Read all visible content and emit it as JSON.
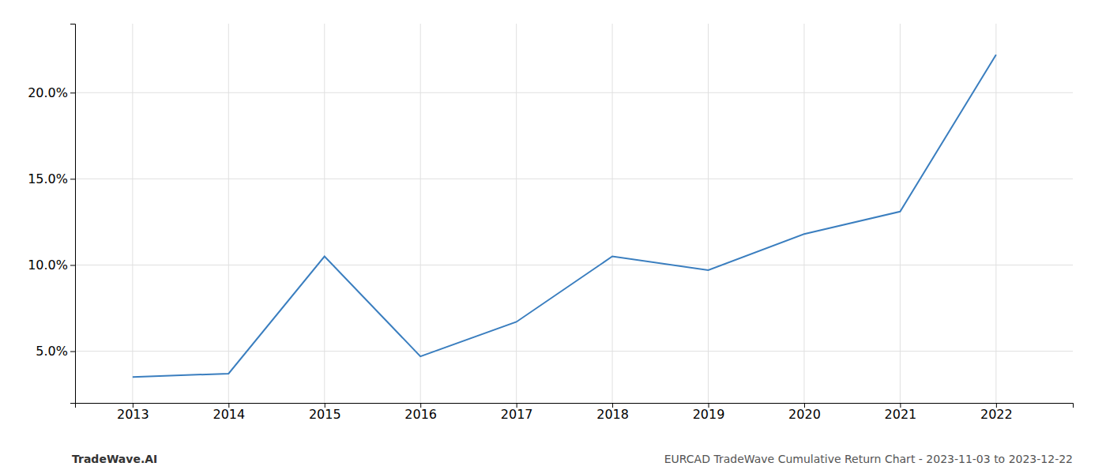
{
  "chart_data": {
    "type": "line",
    "x": [
      2013,
      2014,
      2015,
      2016,
      2017,
      2018,
      2019,
      2020,
      2021,
      2022
    ],
    "values": [
      3.5,
      3.7,
      10.5,
      4.7,
      6.7,
      10.5,
      9.7,
      11.8,
      13.1,
      22.2
    ],
    "color": "#3a7ebf",
    "xlim": [
      2012.4,
      2022.8
    ],
    "ylim": [
      2.0,
      24.0
    ],
    "xticks": [
      2013,
      2014,
      2015,
      2016,
      2017,
      2018,
      2019,
      2020,
      2021,
      2022
    ],
    "yticks": [
      {
        "value": 5.0,
        "label": "5.0%"
      },
      {
        "value": 10.0,
        "label": "10.0%"
      },
      {
        "value": 15.0,
        "label": "15.0%"
      },
      {
        "value": 20.0,
        "label": "20.0%"
      }
    ],
    "grid": true,
    "annotations": [
      "TradeWave.AI",
      "EURCAD TradeWave Cumulative Return Chart - 2023-11-03 to 2023-12-22"
    ]
  }
}
